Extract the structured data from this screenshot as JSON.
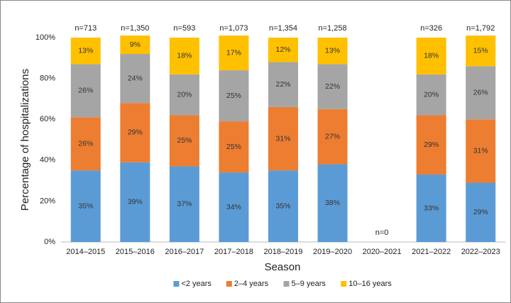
{
  "chart_data": {
    "type": "stacked-bar",
    "y_label": "Percentage of hospitalizations",
    "x_label": "Season",
    "categories": [
      "2014–2015",
      "2015–2016",
      "2016–2017",
      "2017–2018",
      "2018–2019",
      "2019–2020",
      "2020–2021",
      "2021–2022",
      "2022–2023"
    ],
    "n_labels": [
      "n=713",
      "n=1,350",
      "n=593",
      "n=1,073",
      "n=1,354",
      "n=1,258",
      "n=0",
      "n=326",
      "n=1,792"
    ],
    "series": [
      {
        "name": "<2 years",
        "color": "#5b9bd5",
        "values": [
          35,
          39,
          37,
          34,
          35,
          38,
          null,
          33,
          29
        ],
        "value_labels": [
          "35%",
          "39%",
          "37%",
          "34%",
          "35%",
          "38%",
          null,
          "33%",
          "29%"
        ]
      },
      {
        "name": "2–4 years",
        "color": "#ed7d31",
        "values": [
          26,
          29,
          25,
          25,
          31,
          27,
          null,
          29,
          31
        ],
        "value_labels": [
          "26%",
          "29%",
          "25%",
          "25%",
          "31%",
          "27%",
          null,
          "29%",
          "31%"
        ]
      },
      {
        "name": "5–9 years",
        "color": "#a5a5a5",
        "values": [
          26,
          24,
          20,
          25,
          22,
          22,
          null,
          20,
          26
        ],
        "value_labels": [
          "26%",
          "24%",
          "20%",
          "25%",
          "22%",
          "22%",
          null,
          "20%",
          "26%"
        ]
      },
      {
        "name": "10–16 years",
        "color": "#ffc000",
        "values": [
          13,
          9,
          18,
          17,
          12,
          13,
          null,
          18,
          15
        ],
        "value_labels": [
          "13%",
          "9%",
          "18%",
          "17%",
          "12%",
          "13%",
          null,
          "18%",
          "15%"
        ]
      }
    ],
    "ylim": [
      0,
      100
    ],
    "yticks": [
      {
        "value": 0,
        "label": "0%"
      },
      {
        "value": 20,
        "label": "20%"
      },
      {
        "value": 40,
        "label": "40%"
      },
      {
        "value": 60,
        "label": "60%"
      },
      {
        "value": 80,
        "label": "80%"
      },
      {
        "value": 100,
        "label": "100%"
      }
    ],
    "legend": "bottom"
  }
}
